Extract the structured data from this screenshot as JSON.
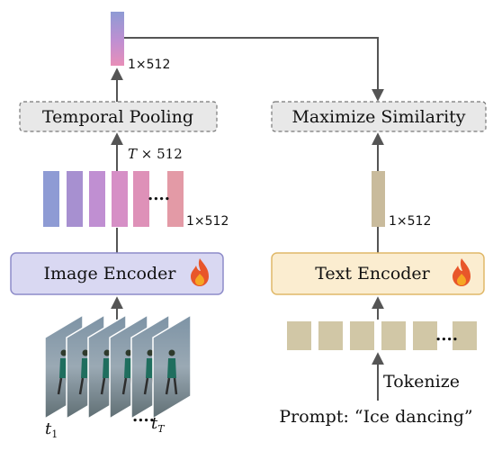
{
  "left": {
    "pooled_dim": "1×512",
    "pooling_label": "Temporal Pooling",
    "frames_dim_T": "T",
    "frames_dim_rest": " × 512",
    "frame_dim": "1×512",
    "encoder_label": "Image Encoder",
    "frame_label_first_base": "t",
    "frame_label_first_sub": "1",
    "frame_label_last_base": "t",
    "frame_label_last_sub": "T",
    "frame_dots": "....",
    "feature_dots": "...."
  },
  "right": {
    "similarity_label": "Maximize Similarity",
    "text_dim": "1×512",
    "encoder_label": "Text Encoder",
    "tokens_dots": "....",
    "tokenize_label": "Tokenize",
    "prompt": "Prompt: “Ice dancing”"
  },
  "colors": {
    "image_encoder_fill": "#d9d8f2",
    "image_encoder_stroke": "#8e8cc9",
    "text_encoder_fill": "#fbedd0",
    "text_encoder_stroke": "#e0b868",
    "dashed_box_fill": "#e8e8e8",
    "arrow": "#555555",
    "text_feature": "#c9bb9c",
    "token": "#d1c7a6",
    "feature_gradient": [
      "#8e9bd4",
      "#a790d0",
      "#c08fd2",
      "#d68fc6",
      "#de91b8",
      "#e39aa6"
    ],
    "flame": "#e8562a"
  }
}
